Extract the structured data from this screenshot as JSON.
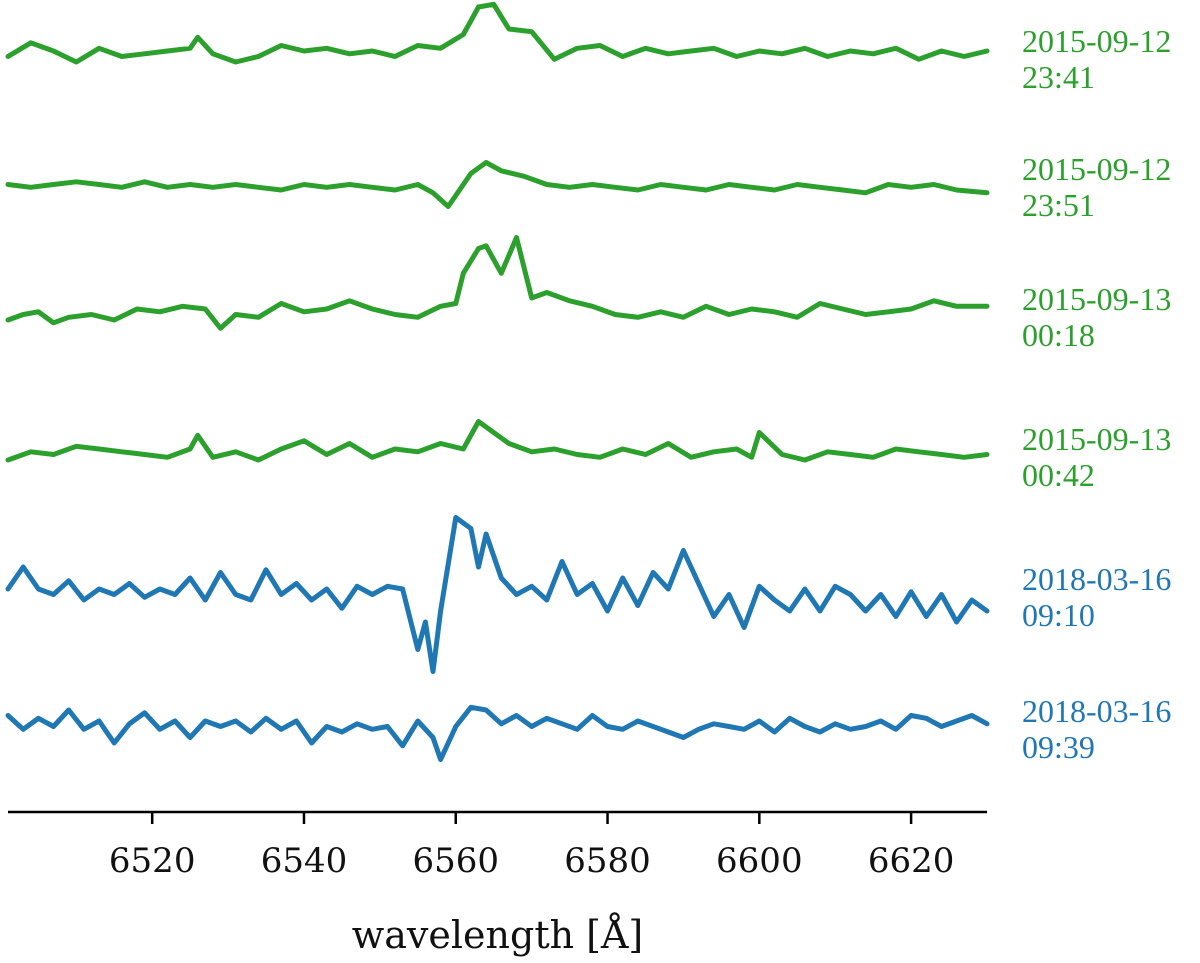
{
  "chart_data": {
    "type": "line",
    "title": "",
    "xlabel": "wavelength [Å]",
    "ylabel": "",
    "xlim": [
      6501,
      6630
    ],
    "xticks": [
      6520,
      6540,
      6560,
      6580,
      6600,
      6620
    ],
    "y_axis_shown": false,
    "grid": false,
    "legend": "none",
    "series_labels_placement": "right of each trace",
    "series": [
      {
        "label_lines": [
          "2015-09-12",
          "23:41"
        ],
        "color": "#2ca02c",
        "x": [
          6501,
          6504,
          6507,
          6510,
          6513,
          6516,
          6519,
          6522,
          6525,
          6526,
          6528,
          6531,
          6534,
          6537,
          6540,
          6543,
          6546,
          6549,
          6552,
          6555,
          6558,
          6561,
          6563,
          6565,
          6567,
          6570,
          6573,
          6576,
          6579,
          6582,
          6585,
          6588,
          6591,
          6594,
          6597,
          6600,
          6603,
          6606,
          6609,
          6612,
          6615,
          6618,
          6621,
          6624,
          6627,
          6630
        ],
        "y": [
          0.1,
          0.35,
          0.2,
          0.0,
          0.25,
          0.1,
          0.15,
          0.2,
          0.25,
          0.45,
          0.15,
          0.0,
          0.1,
          0.3,
          0.2,
          0.25,
          0.15,
          0.2,
          0.1,
          0.3,
          0.25,
          0.5,
          1.0,
          1.05,
          0.6,
          0.55,
          0.05,
          0.25,
          0.3,
          0.1,
          0.25,
          0.15,
          0.2,
          0.25,
          0.1,
          0.2,
          0.15,
          0.25,
          0.1,
          0.2,
          0.15,
          0.25,
          0.05,
          0.2,
          0.1,
          0.2
        ]
      },
      {
        "label_lines": [
          "2015-09-12",
          "23:51"
        ],
        "color": "#2ca02c",
        "x": [
          6501,
          6504,
          6507,
          6510,
          6513,
          6516,
          6519,
          6522,
          6525,
          6528,
          6531,
          6534,
          6537,
          6540,
          6543,
          6546,
          6549,
          6552,
          6555,
          6557,
          6559,
          6562,
          6564,
          6566,
          6569,
          6572,
          6575,
          6578,
          6581,
          6584,
          6587,
          6590,
          6593,
          6596,
          6599,
          6602,
          6605,
          6608,
          6611,
          6614,
          6617,
          6620,
          6623,
          6626,
          6630
        ],
        "y": [
          0.1,
          0.05,
          0.1,
          0.15,
          0.1,
          0.05,
          0.15,
          0.05,
          0.1,
          0.05,
          0.1,
          0.05,
          0.0,
          0.1,
          0.05,
          0.1,
          0.05,
          0.0,
          0.1,
          -0.05,
          -0.3,
          0.3,
          0.5,
          0.35,
          0.25,
          0.1,
          0.05,
          0.1,
          0.05,
          0.0,
          0.1,
          0.05,
          0.0,
          0.1,
          0.05,
          0.0,
          0.1,
          0.05,
          0.0,
          -0.05,
          0.1,
          0.05,
          0.1,
          0.0,
          -0.05
        ]
      },
      {
        "label_lines": [
          "2015-09-13",
          "00:18"
        ],
        "color": "#2ca02c",
        "x": [
          6501,
          6503,
          6505,
          6507,
          6509,
          6512,
          6515,
          6518,
          6521,
          6524,
          6527,
          6529,
          6531,
          6534,
          6537,
          6540,
          6543,
          6546,
          6549,
          6552,
          6555,
          6558,
          6560,
          6561,
          6563,
          6564,
          6566,
          6568,
          6570,
          6572,
          6575,
          6578,
          6581,
          6584,
          6587,
          6590,
          6593,
          6596,
          6599,
          6602,
          6605,
          6608,
          6611,
          6614,
          6617,
          6620,
          6623,
          6626,
          6630
        ],
        "y": [
          0.0,
          0.1,
          0.15,
          -0.05,
          0.05,
          0.1,
          0.0,
          0.2,
          0.15,
          0.25,
          0.2,
          -0.15,
          0.1,
          0.05,
          0.3,
          0.15,
          0.2,
          0.35,
          0.2,
          0.1,
          0.05,
          0.25,
          0.3,
          0.85,
          1.3,
          1.35,
          0.85,
          1.5,
          0.4,
          0.5,
          0.35,
          0.25,
          0.1,
          0.05,
          0.15,
          0.05,
          0.25,
          0.1,
          0.2,
          0.15,
          0.05,
          0.3,
          0.2,
          0.1,
          0.15,
          0.2,
          0.35,
          0.25,
          0.25
        ]
      },
      {
        "label_lines": [
          "2015-09-13",
          "00:42"
        ],
        "color": "#2ca02c",
        "x": [
          6501,
          6504,
          6507,
          6510,
          6513,
          6516,
          6519,
          6522,
          6525,
          6526,
          6528,
          6531,
          6534,
          6537,
          6540,
          6543,
          6546,
          6549,
          6552,
          6555,
          6558,
          6561,
          6563,
          6565,
          6567,
          6570,
          6573,
          6576,
          6579,
          6582,
          6585,
          6588,
          6591,
          6594,
          6597,
          6599,
          6600,
          6603,
          6606,
          6609,
          6612,
          6615,
          6618,
          6621,
          6624,
          6627,
          6630
        ],
        "y": [
          0.0,
          0.15,
          0.1,
          0.25,
          0.2,
          0.15,
          0.1,
          0.05,
          0.2,
          0.45,
          0.05,
          0.15,
          0.0,
          0.2,
          0.35,
          0.1,
          0.3,
          0.05,
          0.2,
          0.15,
          0.3,
          0.2,
          0.7,
          0.5,
          0.3,
          0.15,
          0.2,
          0.1,
          0.05,
          0.2,
          0.1,
          0.3,
          0.05,
          0.15,
          0.2,
          0.05,
          0.5,
          0.1,
          0.0,
          0.15,
          0.1,
          0.05,
          0.2,
          0.15,
          0.1,
          0.05,
          0.1
        ]
      },
      {
        "label_lines": [
          "2018-03-16",
          "09:10"
        ],
        "color": "#1f77b4",
        "x": [
          6501,
          6503,
          6505,
          6507,
          6509,
          6511,
          6513,
          6515,
          6517,
          6519,
          6521,
          6523,
          6525,
          6527,
          6529,
          6531,
          6533,
          6535,
          6537,
          6539,
          6541,
          6543,
          6545,
          6547,
          6549,
          6551,
          6553,
          6555,
          6556,
          6557,
          6558,
          6560,
          6562,
          6563,
          6564,
          6566,
          6568,
          6570,
          6572,
          6574,
          6576,
          6578,
          6580,
          6582,
          6584,
          6586,
          6588,
          6590,
          6592,
          6594,
          6596,
          6598,
          6600,
          6602,
          6604,
          6606,
          6608,
          6610,
          6612,
          6614,
          6616,
          6618,
          6620,
          6622,
          6624,
          6626,
          6628,
          6630
        ],
        "y": [
          0.2,
          0.6,
          0.2,
          0.1,
          0.35,
          0.0,
          0.2,
          0.1,
          0.3,
          0.05,
          0.2,
          0.1,
          0.4,
          0.0,
          0.5,
          0.1,
          0.0,
          0.55,
          0.1,
          0.3,
          0.0,
          0.2,
          -0.15,
          0.25,
          0.1,
          0.25,
          0.2,
          -0.9,
          -0.4,
          -1.3,
          -0.2,
          1.5,
          1.3,
          0.6,
          1.2,
          0.4,
          0.1,
          0.25,
          0.0,
          0.7,
          0.1,
          0.3,
          -0.2,
          0.4,
          -0.1,
          0.5,
          0.2,
          0.9,
          0.3,
          -0.3,
          0.1,
          -0.5,
          0.25,
          0.0,
          -0.2,
          0.2,
          -0.2,
          0.25,
          0.1,
          -0.2,
          0.1,
          -0.3,
          0.15,
          -0.3,
          0.1,
          -0.4,
          0.0,
          -0.2
        ]
      },
      {
        "label_lines": [
          "2018-03-16",
          "09:39"
        ],
        "color": "#1f77b4",
        "x": [
          6501,
          6503,
          6505,
          6507,
          6509,
          6511,
          6513,
          6515,
          6517,
          6519,
          6521,
          6523,
          6525,
          6527,
          6529,
          6531,
          6533,
          6535,
          6537,
          6539,
          6541,
          6543,
          6545,
          6547,
          6549,
          6551,
          6553,
          6555,
          6557,
          6558,
          6560,
          6562,
          6564,
          6566,
          6568,
          6570,
          6572,
          6574,
          6576,
          6578,
          6580,
          6582,
          6584,
          6586,
          6588,
          6590,
          6592,
          6594,
          6596,
          6598,
          6600,
          6602,
          6604,
          6606,
          6608,
          6610,
          6612,
          6614,
          6616,
          6618,
          6620,
          6622,
          6624,
          6626,
          6628,
          6630
        ],
        "y": [
          0.3,
          0.05,
          0.25,
          0.1,
          0.4,
          0.05,
          0.2,
          -0.2,
          0.15,
          0.35,
          0.05,
          0.2,
          -0.1,
          0.2,
          0.1,
          0.2,
          0.0,
          0.25,
          0.05,
          0.2,
          -0.2,
          0.1,
          0.0,
          0.15,
          0.05,
          0.1,
          -0.25,
          0.2,
          -0.1,
          -0.5,
          0.1,
          0.45,
          0.4,
          0.15,
          0.3,
          0.1,
          0.25,
          0.15,
          0.05,
          0.3,
          0.1,
          0.05,
          0.2,
          0.1,
          0.0,
          -0.1,
          0.05,
          0.15,
          0.1,
          0.05,
          0.2,
          0.0,
          0.25,
          0.1,
          0.0,
          0.15,
          0.05,
          0.1,
          0.2,
          0.05,
          0.3,
          0.25,
          0.1,
          0.2,
          0.3,
          0.15
        ]
      }
    ]
  }
}
